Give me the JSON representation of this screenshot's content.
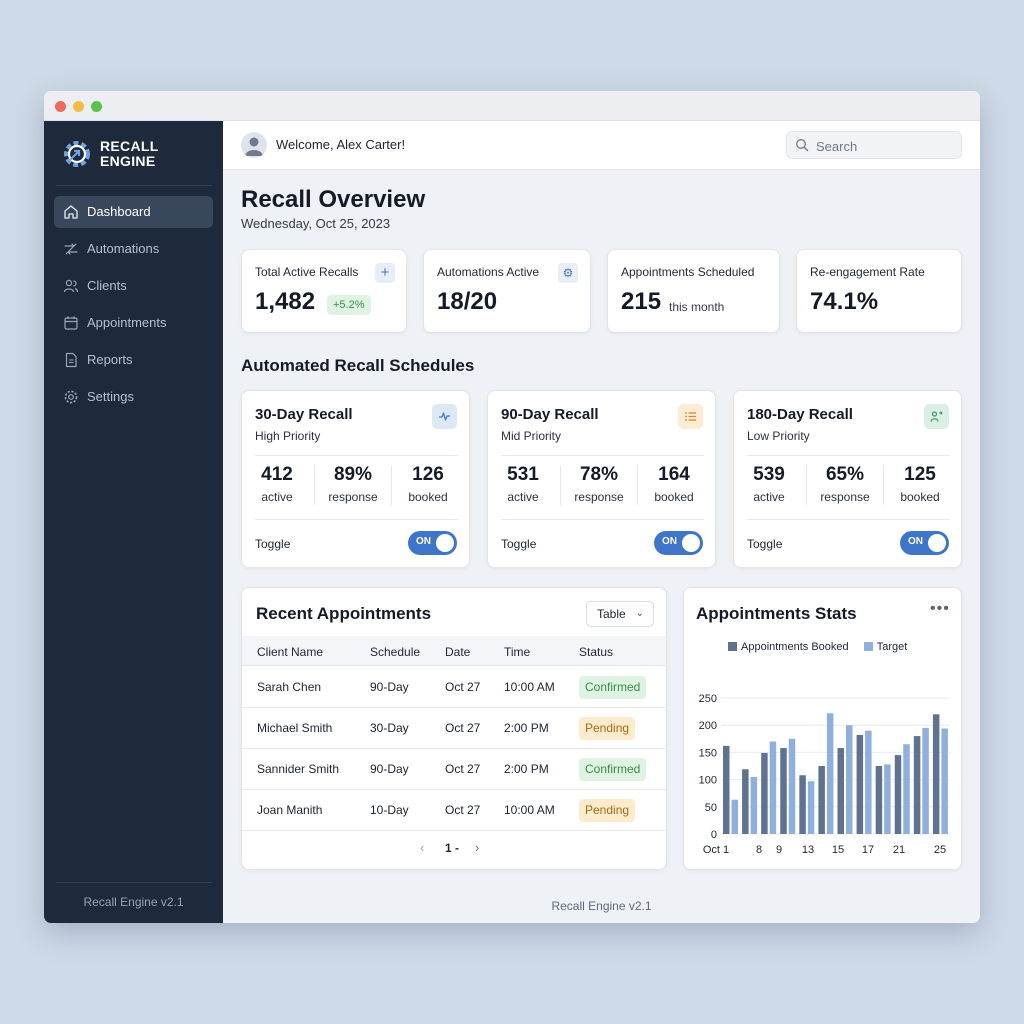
{
  "app": {
    "logo_line1": "RECALL",
    "logo_line2": "ENGINE",
    "footer_version": "Recall Engine v2.1",
    "main_footer": "Recall Engine v2.1"
  },
  "sidebar": {
    "items": [
      {
        "label": "Dashboard",
        "icon": "home-icon",
        "active": true
      },
      {
        "label": "Automations",
        "icon": "automation-icon"
      },
      {
        "label": "Clients",
        "icon": "users-icon"
      },
      {
        "label": "Appointments",
        "icon": "calendar-icon"
      },
      {
        "label": "Reports",
        "icon": "document-icon"
      },
      {
        "label": "Settings",
        "icon": "gear-icon"
      }
    ]
  },
  "header": {
    "welcome": "Welcome, Alex Carter!",
    "search_placeholder": "Search"
  },
  "page": {
    "title": "Recall Overview",
    "date": "Wednesday, Oct 25, 2023"
  },
  "stats": [
    {
      "label": "Total Active Recalls",
      "value": "1,482",
      "badge": "+5.2%",
      "icon": "plus-icon"
    },
    {
      "label": "Automations Active",
      "value": "18/20",
      "icon": "gear-icon"
    },
    {
      "label": "Appointments Scheduled",
      "value": "215",
      "suffix": "this month"
    },
    {
      "label": "Re-engagement Rate",
      "value": "74.1%"
    }
  ],
  "recall_section_title": "Automated Recall Schedules",
  "recalls": [
    {
      "title": "30-Day Recall",
      "priority": "High Priority",
      "icon": "pulse-icon",
      "accent": "#4a7cc3",
      "metrics": [
        {
          "value": "412",
          "label": "active"
        },
        {
          "value": "89%",
          "label": "response"
        },
        {
          "value": "126",
          "label": "booked"
        }
      ],
      "toggle_label": "Toggle",
      "toggle_state": "ON"
    },
    {
      "title": "90-Day Recall",
      "priority": "Mid Priority",
      "icon": "list-icon",
      "accent": "#d08a2f",
      "metrics": [
        {
          "value": "531",
          "label": "active"
        },
        {
          "value": "78%",
          "label": "response"
        },
        {
          "value": "164",
          "label": "booked"
        }
      ],
      "toggle_label": "Toggle",
      "toggle_state": "ON"
    },
    {
      "title": "180-Day Recall",
      "priority": "Low Priority",
      "icon": "user-flow-icon",
      "accent": "#3f9a66",
      "metrics": [
        {
          "value": "539",
          "label": "active"
        },
        {
          "value": "65%",
          "label": "response"
        },
        {
          "value": "125",
          "label": "booked"
        }
      ],
      "toggle_label": "Toggle",
      "toggle_state": "ON"
    }
  ],
  "appointments": {
    "title": "Recent Appointments",
    "view_select": "Table",
    "columns": [
      "Client Name",
      "Schedule",
      "Date",
      "Time",
      "Status"
    ],
    "rows": [
      {
        "client": "Sarah Chen",
        "schedule": "90-Day",
        "date": "Oct 27",
        "time": "10:00 AM",
        "status": "Confirmed"
      },
      {
        "client": "Michael Smith",
        "schedule": "30-Day",
        "date": "Oct 27",
        "time": "2:00 PM",
        "status": "Pending"
      },
      {
        "client": "Sannider Smith",
        "schedule": "90-Day",
        "date": "Oct 27",
        "time": "2:00 PM",
        "status": "Confirmed"
      },
      {
        "client": "Joan Manith",
        "schedule": "10-Day",
        "date": "Oct 27",
        "time": "10:00 AM",
        "status": "Pending"
      }
    ],
    "pager": "1 -"
  },
  "stats_chart": {
    "title": "Appointments Stats",
    "more_label": "•••"
  },
  "colors": {
    "sidebar_bg": "#1e2a3b",
    "accent_blue": "#3f75c8",
    "booked_bar": "#5f7391",
    "target_bar": "#8fb0db",
    "confirmed_bg": "#dff3e3",
    "pending_bg": "#fcebcc"
  },
  "chart_data": {
    "type": "bar",
    "title": "Appointments Stats",
    "xlabel": "",
    "ylabel": "",
    "ylim": [
      0,
      250
    ],
    "y_ticks": [
      0,
      50,
      100,
      150,
      200,
      250
    ],
    "x_tick_labels": [
      "Oct 1",
      "8",
      "9",
      "13",
      "15",
      "17",
      "21",
      "25"
    ],
    "grid": true,
    "legend": "top",
    "series": [
      {
        "name": "Appointments Booked",
        "values": [
          162,
          119,
          149,
          158,
          108,
          125,
          158,
          182,
          125,
          145,
          180,
          220
        ]
      },
      {
        "name": "Target",
        "values": [
          63,
          105,
          170,
          175,
          97,
          222,
          200,
          190,
          128,
          165,
          195,
          194
        ]
      }
    ]
  }
}
